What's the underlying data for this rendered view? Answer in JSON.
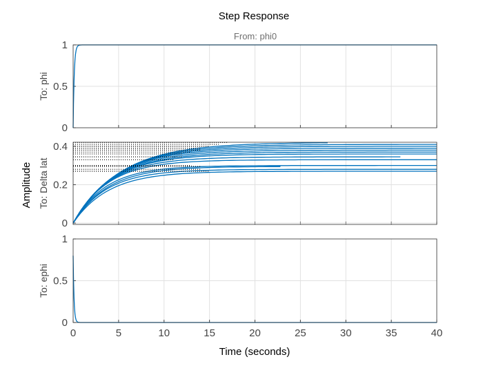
{
  "chart_data": {
    "type": "line",
    "title": "Step Response",
    "subtitle": "From: phi0",
    "xlabel": "Time (seconds)",
    "ylabel": "Amplitude",
    "xlim": [
      0,
      40
    ],
    "xticks": [
      "0",
      "5",
      "10",
      "15",
      "20",
      "25",
      "30",
      "35",
      "40"
    ],
    "grid": true,
    "line_color": "#0072BD",
    "marker_color": "#000000",
    "panels": [
      {
        "label": "To: phi",
        "ylim": [
          0,
          1
        ],
        "yticks": [
          "0",
          "0.5",
          "1"
        ],
        "kind": "rise",
        "final": 1,
        "tau": 0.12
      },
      {
        "label": "To: Delta lat",
        "ylim": [
          -0.007,
          0.421
        ],
        "yticks": [
          "0",
          "0.2",
          "0.4"
        ],
        "kind": "family",
        "series": [
          {
            "final": 0.42,
            "tau": 5.2,
            "settle": 17,
            "end": 28
          },
          {
            "final": 0.41,
            "tau": 5.0,
            "settle": 16,
            "end": 40
          },
          {
            "final": 0.4,
            "tau": 4.8,
            "settle": 15,
            "end": 40
          },
          {
            "final": 0.39,
            "tau": 4.6,
            "settle": 14,
            "end": 40
          },
          {
            "final": 0.38,
            "tau": 4.5,
            "settle": 14,
            "end": 40
          },
          {
            "final": 0.37,
            "tau": 4.4,
            "settle": 13,
            "end": 40
          },
          {
            "final": 0.36,
            "tau": 4.2,
            "settle": 12,
            "end": 40
          },
          {
            "final": 0.345,
            "tau": 4.0,
            "settle": 12,
            "end": 36
          },
          {
            "final": 0.33,
            "tau": 3.8,
            "settle": 11,
            "end": 40
          },
          {
            "final": 0.3,
            "tau": 3.6,
            "settle": 13,
            "end": 40
          },
          {
            "final": 0.295,
            "tau": 3.8,
            "settle": 14,
            "end": 23
          },
          {
            "final": 0.28,
            "tau": 3.7,
            "settle": 14,
            "end": 40
          },
          {
            "final": 0.27,
            "tau": 3.9,
            "settle": 15,
            "end": 40
          }
        ]
      },
      {
        "label": "To: ephi",
        "ylim": [
          0,
          1
        ],
        "yticks": [
          "0",
          "0.5",
          "1"
        ],
        "kind": "decay",
        "start": 0.8,
        "tau": 0.1
      }
    ]
  }
}
